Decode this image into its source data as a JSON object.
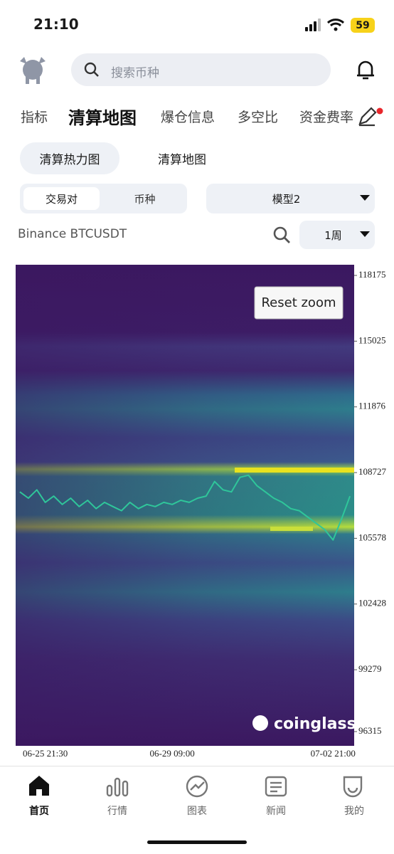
{
  "status_bar": {
    "time": "21:10",
    "battery": "59"
  },
  "search": {
    "placeholder": "搜索币种"
  },
  "tabs": [
    "指标",
    "清算地图",
    "爆仓信息",
    "多空比",
    "资金费率"
  ],
  "sub_tabs": [
    "清算热力图",
    "清算地图"
  ],
  "pair_toggle": [
    "交易对",
    "币种"
  ],
  "model_select": "模型2",
  "symbol": "Binance BTCUSDT",
  "period_select": "1周",
  "chart_data": {
    "type": "line",
    "categories": [
      null,
      null,
      null,
      "06-25 21:30",
      null,
      null,
      null,
      null,
      null,
      null,
      null,
      null,
      null,
      null,
      null,
      null,
      null,
      null,
      "06-29 09:00",
      null,
      null,
      null,
      null,
      null,
      null,
      null,
      null,
      null,
      null,
      null,
      null,
      null,
      null,
      null,
      null,
      null,
      null,
      "07-02 21:00",
      null,
      null
    ],
    "values": [
      107800,
      107500,
      107900,
      107300,
      107600,
      107200,
      107500,
      107100,
      107400,
      107000,
      107300,
      107100,
      106900,
      107300,
      107000,
      107200,
      107100,
      107300,
      107200,
      107400,
      107300,
      107500,
      107600,
      108300,
      107900,
      107800,
      108500,
      108600,
      108100,
      107800,
      107500,
      107300,
      107000,
      106900,
      106600,
      106300,
      106000,
      105500,
      106500,
      107600
    ],
    "color": "#2fc69a",
    "ylim": [
      95633,
      118687
    ],
    "yticks": [
      118175,
      115025,
      111876,
      108727,
      105578,
      102428,
      99279,
      96315
    ],
    "reset_zoom": "Reset zoom",
    "watermark": "coinglass"
  },
  "bottom_nav": [
    "首页",
    "行情",
    "图表",
    "新闻",
    "我的"
  ]
}
